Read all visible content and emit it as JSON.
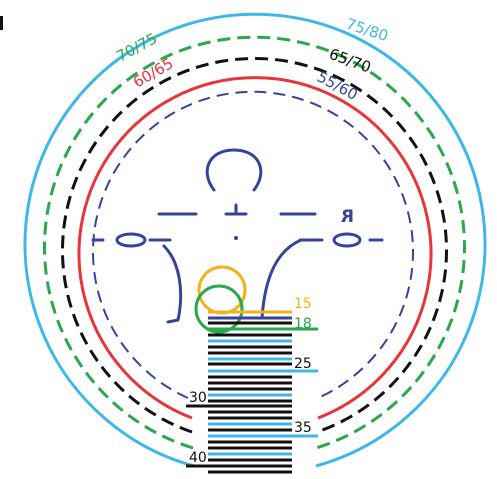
{
  "colors": {
    "cyan": "#3cb8e8",
    "green": "#2aa84a",
    "black": "#111111",
    "red": "#e8343b",
    "blue": "#35449a",
    "orange": "#f2b21b"
  },
  "arc_labels": {
    "cyan": "75/80",
    "green": "70/75",
    "black": "65/70",
    "red": "60/65",
    "blue": "55/60"
  },
  "figure": {
    "reversed_r": "R"
  },
  "ruler": {
    "label_15": "15",
    "label_18": "18",
    "label_25": "25",
    "label_30": "30",
    "label_35": "35",
    "label_40": "40"
  }
}
